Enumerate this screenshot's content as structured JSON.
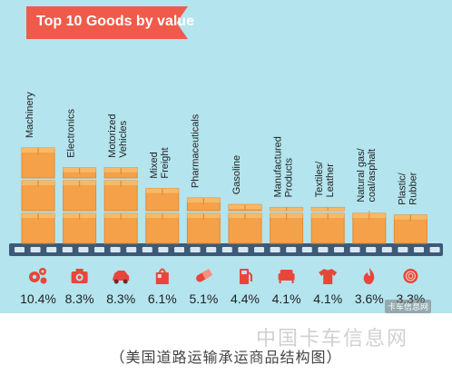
{
  "title": "Top 10 Goods by value",
  "caption": "（美国道路运输承运商品结构图）",
  "watermark": "中国卡车信息网",
  "watermark_badge": "卡车信息网",
  "colors": {
    "background": "#b4e4ee",
    "banner": "#f05a4a",
    "box_front": "#f4a14a",
    "box_top": "#f7b966",
    "box_side": "#e38a33",
    "icon": "#e8463a",
    "rail": "#3c5a78",
    "text": "#222222"
  },
  "chart_data": {
    "type": "bar",
    "title": "Top 10 Goods by value",
    "categories": [
      [
        "Machinery"
      ],
      [
        "Electronics"
      ],
      [
        "Motorized",
        "Vehicles"
      ],
      [
        "Mixed",
        "Freight"
      ],
      [
        "Pharmaceuticals"
      ],
      [
        "Gasoline"
      ],
      [
        "Manufactured",
        "Products"
      ],
      [
        "Textiles/",
        "Leather"
      ],
      [
        "Natural gas/",
        "coal/asphalt"
      ],
      [
        "Plastic/",
        "Rubber"
      ]
    ],
    "values": [
      10.4,
      8.3,
      8.3,
      6.1,
      5.1,
      4.4,
      4.1,
      4.1,
      3.6,
      3.3
    ],
    "value_labels": [
      "10.4%",
      "8.3%",
      "8.3%",
      "6.1%",
      "5.1%",
      "4.4%",
      "4.1%",
      "4.1%",
      "3.6%",
      "3.3%"
    ],
    "icons": [
      "gears-icon",
      "camera-icon",
      "car-icon",
      "shopping-bag-icon",
      "pill-icon",
      "gas-pump-icon",
      "sofa-icon",
      "shirt-icon",
      "flame-icon",
      "rubber-ball-icon"
    ],
    "unit": "%",
    "ylim": [
      0,
      10.4
    ]
  }
}
